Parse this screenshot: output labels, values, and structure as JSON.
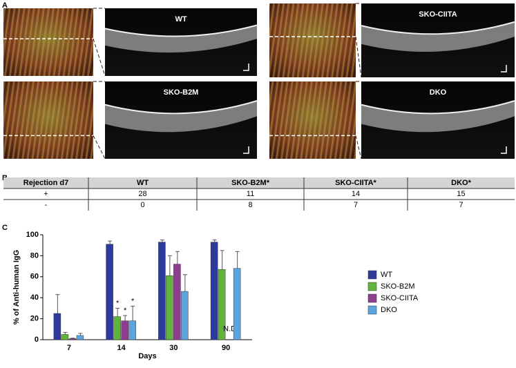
{
  "panel_a": {
    "letter": "A",
    "labels": [
      "WT",
      "SKO-B2M",
      "SKO-CIITA",
      "DKO"
    ]
  },
  "panel_b": {
    "letter": "B",
    "header": [
      "Rejection d7",
      "WT",
      "SKO-B2M*",
      "SKO-CIITA*",
      "DKO*"
    ],
    "rows": [
      [
        "+",
        "28",
        "11",
        "14",
        "15"
      ],
      [
        "-",
        "0",
        "8",
        "7",
        "7"
      ]
    ]
  },
  "chart_data": {
    "type": "bar",
    "letter": "C",
    "x_label": "Days",
    "y_label": "% of Anti-human IgG",
    "categories": [
      "7",
      "14",
      "30",
      "90"
    ],
    "series": [
      {
        "name": "WT",
        "color": "#2e3b9c",
        "values": [
          25,
          91,
          93,
          93
        ],
        "errors": [
          18,
          3,
          2,
          2
        ],
        "notes": [
          null,
          null,
          null,
          null
        ]
      },
      {
        "name": "SKO-B2M",
        "color": "#5fb43a",
        "values": [
          5,
          22,
          61,
          67
        ],
        "errors": [
          2,
          8,
          19,
          18
        ],
        "notes": [
          null,
          "*",
          null,
          null
        ]
      },
      {
        "name": "SKO-CIITA",
        "color": "#8c3f8e",
        "values": [
          1,
          18,
          72,
          null
        ],
        "errors": [
          0.5,
          5,
          12,
          null
        ],
        "notes": [
          null,
          "*",
          null,
          "N.D"
        ]
      },
      {
        "name": "DKO",
        "color": "#5ca4e0",
        "values": [
          4,
          18,
          46,
          68
        ],
        "errors": [
          2,
          14,
          16,
          16
        ],
        "notes": [
          null,
          "*",
          null,
          null
        ]
      }
    ],
    "ylim": [
      0,
      100
    ],
    "yticks": [
      0,
      20,
      40,
      60,
      80,
      100
    ]
  }
}
